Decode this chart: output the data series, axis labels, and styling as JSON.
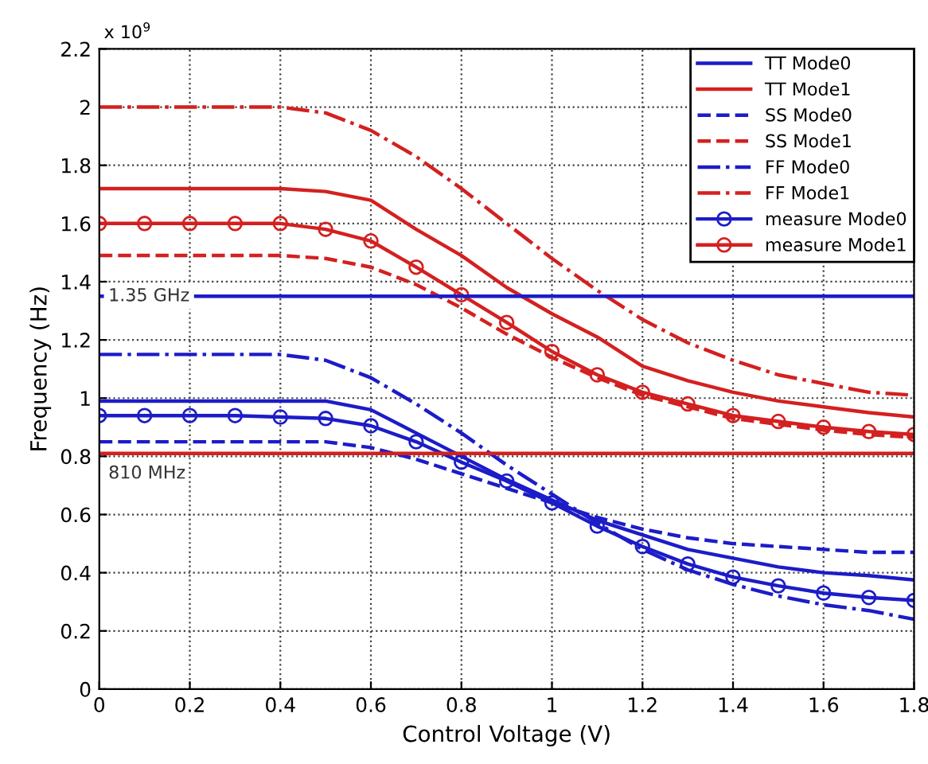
{
  "chart_data": {
    "type": "line",
    "xlabel": "Control Voltage (V)",
    "ylabel": "Frequency (Hz)",
    "x": [
      0,
      0.1,
      0.2,
      0.3,
      0.4,
      0.5,
      0.6,
      0.7,
      0.8,
      0.9,
      1.0,
      1.1,
      1.2,
      1.3,
      1.4,
      1.5,
      1.6,
      1.7,
      1.8
    ],
    "xlim": [
      0,
      1.8
    ],
    "xticks": [
      0,
      0.2,
      0.4,
      0.6,
      0.8,
      1,
      1.2,
      1.4,
      1.6,
      1.8
    ],
    "ylim": [
      0,
      2.2
    ],
    "yticks": [
      0,
      0.2,
      0.4,
      0.6,
      0.8,
      1,
      1.2,
      1.4,
      1.6,
      1.8,
      2,
      2.2
    ],
    "grid": true,
    "legend": "top right",
    "marker": "none",
    "line_style": "solid",
    "annotations": [
      "x 10$^{9}$"
    ],
    "ref_lines": [
      {
        "axis": "y",
        "value": 1.35,
        "label": "1.35 GHz",
        "color": "#1c1cc8"
      },
      {
        "axis": "y",
        "value": 0.81,
        "label": "810 MHz",
        "color": "#d42020"
      }
    ],
    "series": [
      {
        "name": "TT Mode0",
        "color": "#1c1cc8",
        "values": [
          0.99,
          0.99,
          0.99,
          0.99,
          0.99,
          0.99,
          0.96,
          0.88,
          0.8,
          0.72,
          0.65,
          0.58,
          0.53,
          0.48,
          0.45,
          0.42,
          0.4,
          0.39,
          0.375
        ]
      },
      {
        "name": "TT Mode1",
        "color": "#d42020",
        "values": [
          1.72,
          1.72,
          1.72,
          1.72,
          1.72,
          1.71,
          1.68,
          1.58,
          1.49,
          1.38,
          1.29,
          1.21,
          1.11,
          1.06,
          1.02,
          0.99,
          0.97,
          0.95,
          0.935
        ]
      },
      {
        "name": "SS Mode0",
        "color": "#1c1cc8",
        "line_style": "dashed",
        "values": [
          0.85,
          0.85,
          0.85,
          0.85,
          0.85,
          0.85,
          0.83,
          0.79,
          0.74,
          0.69,
          0.64,
          0.59,
          0.55,
          0.52,
          0.5,
          0.49,
          0.48,
          0.47,
          0.47
        ]
      },
      {
        "name": "SS Mode1",
        "color": "#d42020",
        "line_style": "dashed",
        "values": [
          1.49,
          1.49,
          1.49,
          1.49,
          1.49,
          1.48,
          1.45,
          1.39,
          1.31,
          1.22,
          1.14,
          1.07,
          1.01,
          0.97,
          0.93,
          0.91,
          0.89,
          0.875,
          0.865
        ]
      },
      {
        "name": "FF Mode0",
        "color": "#1c1cc8",
        "line_style": "dashdot",
        "values": [
          1.15,
          1.15,
          1.15,
          1.15,
          1.15,
          1.13,
          1.07,
          0.98,
          0.88,
          0.77,
          0.67,
          0.57,
          0.48,
          0.41,
          0.36,
          0.32,
          0.29,
          0.27,
          0.24
        ]
      },
      {
        "name": "FF Mode1",
        "color": "#d42020",
        "line_style": "dashdot",
        "values": [
          2.0,
          2.0,
          2.0,
          2.0,
          2.0,
          1.98,
          1.92,
          1.83,
          1.72,
          1.6,
          1.48,
          1.37,
          1.27,
          1.19,
          1.13,
          1.08,
          1.05,
          1.02,
          1.01
        ]
      },
      {
        "name": "measure Mode0",
        "color": "#1c1cc8",
        "marker": "circle",
        "values": [
          0.94,
          0.94,
          0.94,
          0.94,
          0.935,
          0.93,
          0.905,
          0.85,
          0.78,
          0.715,
          0.64,
          0.56,
          0.49,
          0.43,
          0.385,
          0.355,
          0.33,
          0.315,
          0.305
        ]
      },
      {
        "name": "measure Mode1",
        "color": "#d42020",
        "marker": "circle",
        "values": [
          1.6,
          1.6,
          1.6,
          1.6,
          1.6,
          1.58,
          1.54,
          1.45,
          1.355,
          1.26,
          1.16,
          1.08,
          1.02,
          0.98,
          0.94,
          0.92,
          0.9,
          0.885,
          0.875
        ]
      }
    ]
  }
}
